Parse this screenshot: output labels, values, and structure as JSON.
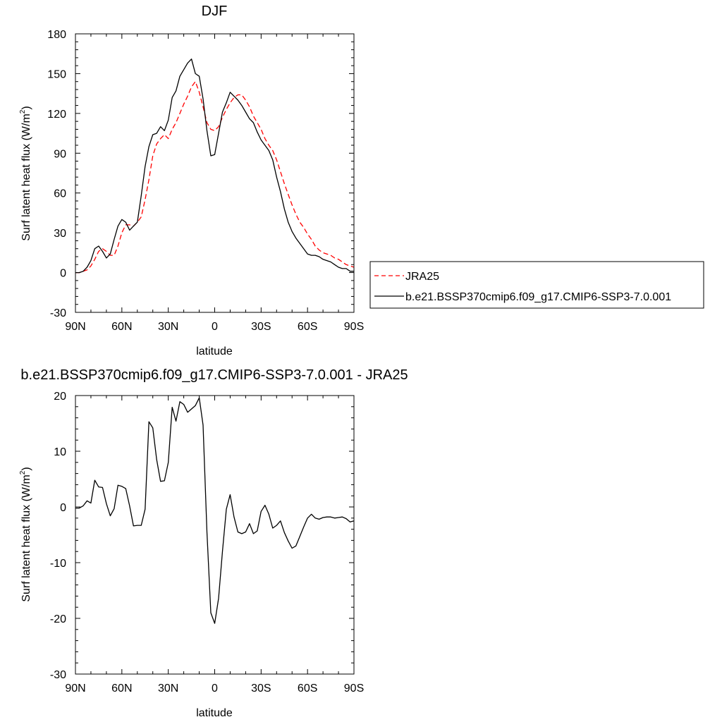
{
  "chart_data": [
    {
      "type": "line",
      "title": "DJF",
      "xlabel": "latitude",
      "ylabel": "Surf latent heat flux (W/m",
      "ylabel_sup": "2",
      "ylabel_close": ")",
      "xlim": [
        90,
        -90
      ],
      "ylim": [
        -30,
        180
      ],
      "xticks": [
        90,
        60,
        30,
        0,
        -30,
        -60,
        -90
      ],
      "xtick_labels": [
        "90N",
        "60N",
        "30N",
        "0",
        "30S",
        "60S",
        "90S"
      ],
      "yticks": [
        -30,
        0,
        30,
        60,
        90,
        120,
        150,
        180
      ],
      "ytick_labels": [
        "-30",
        "0",
        "30",
        "60",
        "90",
        "120",
        "150",
        "180"
      ],
      "legend_position": "right",
      "series": [
        {
          "name": "JRA25",
          "color": "#ff0000",
          "style": "dashed",
          "x": [
            90,
            87.5,
            85,
            82.5,
            80,
            77.5,
            75,
            72.5,
            70,
            67.5,
            65,
            62.5,
            60,
            57.5,
            55,
            52.5,
            50,
            47.5,
            45,
            42.5,
            40,
            37.5,
            35,
            32.5,
            30,
            27.5,
            25,
            22.5,
            20,
            17.5,
            15,
            12.5,
            10,
            7.5,
            5,
            2.5,
            0,
            -2.5,
            -5,
            -7.5,
            -10,
            -12.5,
            -15,
            -17.5,
            -20,
            -22.5,
            -25,
            -27.5,
            -30,
            -32.5,
            -35,
            -37.5,
            -40,
            -42.5,
            -45,
            -47.5,
            -50,
            -52.5,
            -55,
            -57.5,
            -60,
            -62.5,
            -65,
            -67.5,
            -70,
            -72.5,
            -75,
            -77.5,
            -80,
            -82.5,
            -85,
            -87.5,
            -90
          ],
          "y": [
            0,
            0,
            1,
            2,
            5,
            10,
            16,
            18,
            16,
            13,
            13,
            20,
            30,
            36,
            36,
            35,
            38,
            42,
            55,
            70,
            88,
            97,
            101,
            104,
            101,
            108,
            113,
            120,
            127,
            133,
            140,
            144,
            136,
            125,
            113,
            108,
            107,
            110,
            117,
            123,
            128,
            132,
            134,
            134,
            130,
            125,
            118,
            113,
            108,
            101,
            96,
            92,
            85,
            76,
            67,
            59,
            51,
            44,
            38,
            34,
            29,
            25,
            20,
            17,
            15,
            14,
            13,
            11,
            10,
            8,
            6,
            5,
            4
          ]
        },
        {
          "name": "b.e21.BSSP370cmip6.f09_g17.CMIP6-SSP3-7.0.001",
          "color": "#000000",
          "style": "solid",
          "x": [
            90,
            87.5,
            85,
            82.5,
            80,
            77.5,
            75,
            72.5,
            70,
            67.5,
            65,
            62.5,
            60,
            57.5,
            55,
            52.5,
            50,
            47.5,
            45,
            42.5,
            40,
            37.5,
            35,
            32.5,
            30,
            27.5,
            25,
            22.5,
            20,
            17.5,
            15,
            12.5,
            10,
            7.5,
            5,
            2.5,
            0,
            -2.5,
            -5,
            -7.5,
            -10,
            -12.5,
            -15,
            -17.5,
            -20,
            -22.5,
            -25,
            -27.5,
            -30,
            -32.5,
            -35,
            -37.5,
            -40,
            -42.5,
            -45,
            -47.5,
            -50,
            -52.5,
            -55,
            -57.5,
            -60,
            -62.5,
            -65,
            -67.5,
            -70,
            -72.5,
            -75,
            -77.5,
            -80,
            -82.5,
            -85,
            -87.5,
            -90
          ],
          "y": [
            0,
            0,
            1,
            4,
            9,
            18,
            20,
            16,
            11,
            14,
            25,
            35,
            40,
            38,
            32,
            35,
            38,
            58,
            80,
            95,
            104,
            105,
            110,
            107,
            115,
            132,
            137,
            148,
            153,
            158,
            161,
            150,
            148,
            131,
            107,
            88,
            89,
            105,
            121,
            128,
            136,
            133,
            130,
            126,
            121,
            116,
            113,
            106,
            100,
            96,
            92,
            85,
            72,
            61,
            48,
            38,
            31,
            26,
            22,
            18,
            14,
            13,
            13,
            12,
            10,
            9,
            8,
            6,
            4,
            3,
            3,
            1,
            1
          ]
        }
      ]
    },
    {
      "type": "line",
      "title": "b.e21.BSSP370cmip6.f09_g17.CMIP6-SSP3-7.0.001 - JRA25",
      "xlabel": "latitude",
      "ylabel": "Surf latent heat flux (W/m",
      "ylabel_sup": "2",
      "ylabel_close": ")",
      "xlim": [
        90,
        -90
      ],
      "ylim": [
        -30,
        20
      ],
      "xticks": [
        90,
        60,
        30,
        0,
        -30,
        -60,
        -90
      ],
      "xtick_labels": [
        "90N",
        "60N",
        "30N",
        "0",
        "30S",
        "60S",
        "90S"
      ],
      "yticks": [
        -30,
        -20,
        -10,
        0,
        10,
        20
      ],
      "ytick_labels": [
        "-30",
        "-20",
        "-10",
        "0",
        "10",
        "20"
      ],
      "series": [
        {
          "color": "#000000",
          "style": "solid",
          "x": [
            90,
            87.5,
            85,
            82.5,
            80,
            77.5,
            75,
            72.5,
            70,
            67.5,
            65,
            62.5,
            60,
            57.5,
            55,
            52.5,
            50,
            47.5,
            45,
            42.5,
            40,
            37.5,
            35,
            32.5,
            30,
            27.5,
            25,
            22.5,
            20,
            17.5,
            15,
            12.5,
            10,
            7.5,
            5,
            2.5,
            0,
            -2.5,
            -5,
            -7.5,
            -10,
            -12.5,
            -15,
            -17.5,
            -20,
            -22.5,
            -25,
            -27.5,
            -30,
            -32.5,
            -35,
            -37.5,
            -40,
            -42.5,
            -45,
            -47.5,
            -50,
            -52.5,
            -55,
            -57.5,
            -60,
            -62.5,
            -65,
            -67.5,
            -70,
            -72.5,
            -75,
            -77.5,
            -80,
            -82.5,
            -85,
            -87.5,
            -90
          ],
          "y": [
            -0.2,
            -0.2,
            0.2,
            1.1,
            0.7,
            4.8,
            3.6,
            3.5,
            0.6,
            -1.6,
            -0.3,
            3.9,
            3.7,
            3.3,
            0.2,
            -3.4,
            -3.3,
            -3.3,
            -0.4,
            15.3,
            14.2,
            8.5,
            4.6,
            4.7,
            8.0,
            17.9,
            15.4,
            18.9,
            18.4,
            17.0,
            17.6,
            18.2,
            19.6,
            14.7,
            -4.5,
            -19.0,
            -20.9,
            -16.4,
            -8.0,
            -0.4,
            2.2,
            -1.8,
            -4.5,
            -4.8,
            -4.5,
            -3.0,
            -4.8,
            -4.3,
            -0.8,
            0.3,
            -1.3,
            -3.8,
            -3.3,
            -2.5,
            -4.6,
            -6.1,
            -7.4,
            -7.0,
            -5.3,
            -3.6,
            -2.0,
            -1.3,
            -2.0,
            -2.2,
            -1.9,
            -1.8,
            -1.8,
            -2.0,
            -1.9,
            -1.8,
            -2.1,
            -2.7,
            -2.5
          ]
        }
      ]
    }
  ]
}
